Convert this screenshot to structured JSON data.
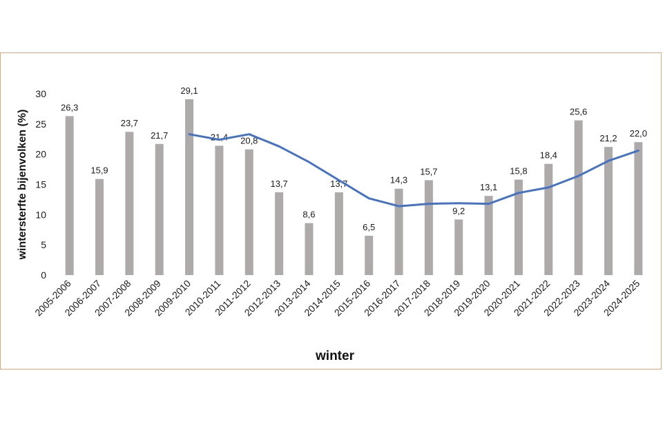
{
  "chart_data": {
    "type": "bar",
    "title": "",
    "xlabel": "winter",
    "ylabel": "wintersterfte bijenvolken (%)",
    "ylim": [
      0,
      30
    ],
    "yticks": [
      "0",
      "5",
      "10",
      "15",
      "20",
      "25",
      "30"
    ],
    "grid": false,
    "legend": "none",
    "categories": [
      "2005-2006",
      "2006-2007",
      "2007-2008",
      "2008-2009",
      "2009-2010",
      "2010-2011",
      "2011-2012",
      "2012-2013",
      "2013-2014",
      "2014-2015",
      "2015-2016",
      "2016-2017",
      "2017-2018",
      "2018-2019",
      "2019-2020",
      "2020-2021",
      "2021-2022",
      "2022-2023",
      "2023-2024",
      "2024-2025"
    ],
    "series": [
      {
        "type": "bar",
        "color": "#aeaaaa",
        "values": [
          26.3,
          15.9,
          23.7,
          21.7,
          29.1,
          21.4,
          20.8,
          13.7,
          8.6,
          13.7,
          6.5,
          14.3,
          15.7,
          9.2,
          13.1,
          15.8,
          18.4,
          25.6,
          21.2,
          22.0
        ],
        "labels": [
          "26,3",
          "15,9",
          "23,7",
          "21,7",
          "29,1",
          "21,4",
          "20,8",
          "13,7",
          "8,6",
          "13,7",
          "6,5",
          "14,3",
          "15,7",
          "9,2",
          "13,1",
          "15,8",
          "18,4",
          "25,6",
          "21,2",
          "22,0"
        ]
      },
      {
        "type": "line",
        "color": "#4472c4",
        "values": [
          null,
          null,
          null,
          null,
          23.3,
          22.4,
          23.3,
          21.3,
          18.7,
          15.7,
          12.7,
          11.4,
          11.8,
          11.9,
          11.8,
          13.6,
          14.5,
          16.4,
          18.9,
          20.6
        ]
      }
    ]
  }
}
